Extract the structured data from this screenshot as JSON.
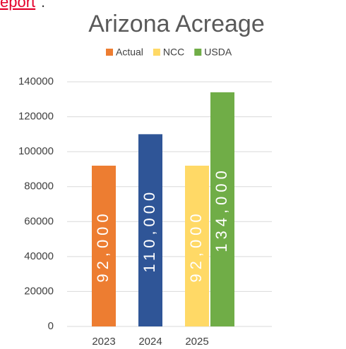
{
  "header": {
    "link": "eport",
    "trailing": "."
  },
  "chart_data": {
    "type": "bar",
    "title": "Arizona Acreage",
    "categories": [
      "2023",
      "2024",
      "2025"
    ],
    "series": [
      {
        "name": "Actual",
        "color": "#ed7d31",
        "colors": [
          "#ed7d31",
          "#2f5597",
          null
        ],
        "values": [
          92000,
          110000,
          null
        ],
        "value_labels": [
          "92,000",
          "110,000",
          null
        ]
      },
      {
        "name": "NCC",
        "color": "#ffd966",
        "values": [
          null,
          null,
          92000
        ],
        "value_labels": [
          null,
          null,
          "92,000"
        ]
      },
      {
        "name": "USDA",
        "color": "#70ad47",
        "values": [
          null,
          null,
          134000
        ],
        "value_labels": [
          null,
          null,
          "134,000"
        ]
      }
    ],
    "ylim": [
      0,
      140000
    ],
    "yticks": [
      0,
      20000,
      40000,
      60000,
      80000,
      100000,
      120000,
      140000
    ],
    "grid": true,
    "legend": "top"
  }
}
